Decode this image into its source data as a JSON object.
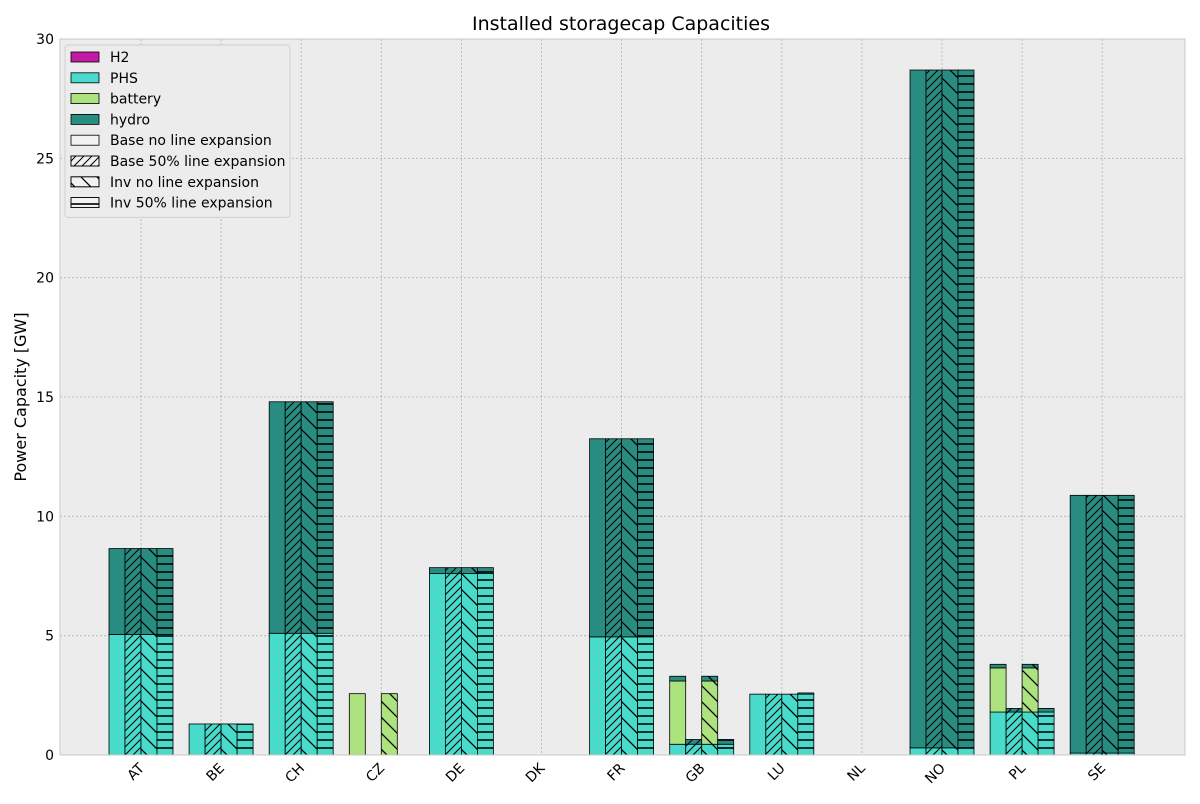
{
  "chart_data": {
    "type": "bar",
    "stacked": true,
    "title": "Installed storagecap Capacities",
    "xlabel": "",
    "ylabel": "Power Capacity [GW]",
    "ylim": [
      0,
      30
    ],
    "yticks": [
      0,
      5,
      10,
      15,
      20,
      25,
      30
    ],
    "grid": true,
    "legend_position": "top-left",
    "categories": [
      "AT",
      "BE",
      "CH",
      "CZ",
      "DE",
      "DK",
      "FR",
      "GB",
      "LU",
      "NL",
      "NO",
      "PL",
      "SE"
    ],
    "technologies": [
      {
        "name": "H2",
        "color": "#c31aa6"
      },
      {
        "name": "PHS",
        "color": "#48dbcb"
      },
      {
        "name": "battery",
        "color": "#ace37f"
      },
      {
        "name": "hydro",
        "color": "#298c81"
      }
    ],
    "scenarios": [
      {
        "name": "Base no line expansion",
        "pattern": "none"
      },
      {
        "name": "Base 50% line expansion",
        "pattern": "diag-fwd"
      },
      {
        "name": "Inv no line expansion",
        "pattern": "diag-back"
      },
      {
        "name": "Inv 50% line expansion",
        "pattern": "horizontal"
      }
    ],
    "series": [
      {
        "scenario": "Base no line expansion",
        "H2": [
          0,
          0,
          0,
          0,
          0,
          0,
          0,
          0,
          0,
          0,
          0,
          0,
          0
        ],
        "PHS": [
          5.05,
          1.3,
          5.1,
          0,
          7.6,
          0,
          4.95,
          0.45,
          2.55,
          0,
          0.3,
          1.8,
          0.08
        ],
        "battery": [
          0,
          0,
          0,
          2.57,
          0,
          0,
          0,
          2.65,
          0,
          0,
          0,
          1.85,
          0
        ],
        "hydro": [
          3.6,
          0,
          9.7,
          0,
          0.25,
          0,
          8.3,
          0.2,
          0,
          0,
          28.4,
          0.15,
          10.8
        ]
      },
      {
        "scenario": "Base 50% line expansion",
        "H2": [
          0,
          0,
          0,
          0,
          0,
          0,
          0,
          0,
          0,
          0,
          0,
          0,
          0
        ],
        "PHS": [
          5.05,
          1.3,
          5.1,
          0,
          7.6,
          0,
          4.95,
          0.45,
          2.55,
          0,
          0.3,
          1.8,
          0.08
        ],
        "battery": [
          0,
          0,
          0,
          0,
          0,
          0,
          0,
          0,
          0,
          0,
          0,
          0,
          0
        ],
        "hydro": [
          3.6,
          0,
          9.7,
          0,
          0.25,
          0,
          8.3,
          0.2,
          0,
          0,
          28.4,
          0.15,
          10.8
        ]
      },
      {
        "scenario": "Inv no line expansion",
        "H2": [
          0,
          0,
          0,
          0,
          0,
          0,
          0,
          0,
          0,
          0,
          0,
          0,
          0
        ],
        "PHS": [
          5.05,
          1.3,
          5.1,
          0,
          7.6,
          0,
          4.95,
          0.45,
          2.55,
          0,
          0.3,
          1.8,
          0.08
        ],
        "battery": [
          0,
          0,
          0,
          2.57,
          0,
          0,
          0,
          2.65,
          0,
          0,
          0,
          1.85,
          0
        ],
        "hydro": [
          3.6,
          0,
          9.7,
          0,
          0.25,
          0,
          8.3,
          0.2,
          0,
          0,
          28.4,
          0.15,
          10.8
        ]
      },
      {
        "scenario": "Inv 50% line expansion",
        "H2": [
          0,
          0,
          0,
          0,
          0,
          0,
          0,
          0,
          0,
          0,
          0,
          0,
          0
        ],
        "PHS": [
          5.05,
          1.3,
          5.1,
          0,
          7.6,
          0,
          4.95,
          0.45,
          2.55,
          0,
          0.3,
          1.8,
          0.08
        ],
        "battery": [
          0,
          0,
          0,
          0,
          0,
          0,
          0,
          0,
          0,
          0,
          0,
          0,
          0
        ],
        "hydro": [
          3.6,
          0,
          9.7,
          0,
          0.25,
          0,
          8.3,
          0.2,
          0.05,
          0,
          28.4,
          0.15,
          10.8
        ]
      }
    ]
  },
  "colors": {
    "plot_background": "#ececec",
    "grid": "#b0b0b0",
    "bar_edge": "#000000"
  }
}
